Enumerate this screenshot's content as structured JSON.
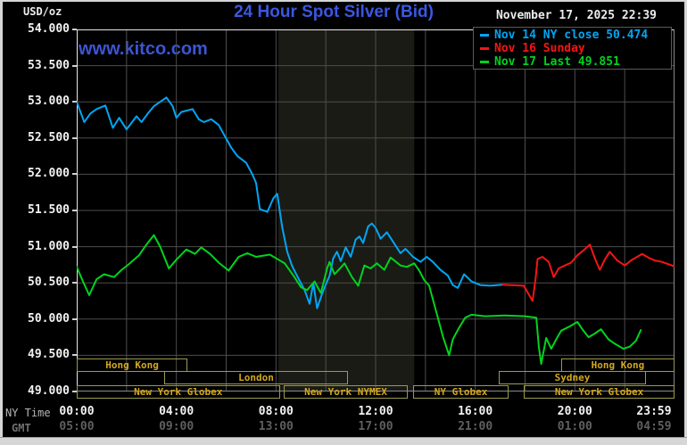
{
  "header": {
    "usd_oz": "USD/oz",
    "title": "24 Hour Spot Silver (Bid)",
    "datetime": "November 17, 2025 22:39",
    "watermark": "www.kitco.com"
  },
  "axis_labels": {
    "ny_time": "NY Time",
    "gmt": "GMT"
  },
  "legend": [
    {
      "label": "Nov 14 NY close 50.474",
      "color": "#00a6f4"
    },
    {
      "label": "Nov 16 Sunday",
      "color": "#f51515"
    },
    {
      "label": "Nov 17 Last 49.851",
      "color": "#00d41e"
    }
  ],
  "colors": {
    "background": "#000000",
    "grid": "#4d4d4d",
    "nymex_band": "#1b1b15",
    "axis_text": "#f2f2f2",
    "gmt_text": "#5f5f5f",
    "session_border": "#9a9a4e",
    "session_text": "#d2a81e",
    "title_blue": "#3b57e0",
    "watermark_blue": "#3c55d4",
    "plot_border_light": "#e8e8e8",
    "plot_border_dark": "#8a8a8a"
  },
  "chart_data": {
    "type": "line",
    "title": "24 Hour Spot Silver (Bid)",
    "ylabel": "USD/oz",
    "ylim": [
      49.0,
      54.0
    ],
    "xlim_hours": [
      0,
      24
    ],
    "grid": {
      "x_step_hours": 2,
      "y_step": 0.5,
      "on": true
    },
    "legend_position": "top-right",
    "nymex_band_hours": [
      8.1,
      13.55
    ],
    "y_ticks": [
      {
        "label": "54.000",
        "value": 54.0
      },
      {
        "label": "53.500",
        "value": 53.5
      },
      {
        "label": "53.000",
        "value": 53.0
      },
      {
        "label": "52.500",
        "value": 52.5
      },
      {
        "label": "52.000",
        "value": 52.0
      },
      {
        "label": "51.500",
        "value": 51.5
      },
      {
        "label": "51.000",
        "value": 51.0
      },
      {
        "label": "50.500",
        "value": 50.5
      },
      {
        "label": "50.000",
        "value": 50.0
      },
      {
        "label": "49.500",
        "value": 49.5
      },
      {
        "label": "49.000",
        "value": 49.0
      }
    ],
    "x_ticks": [
      {
        "ny": "00:00",
        "gmt": "05:00",
        "hour": 0
      },
      {
        "ny": "04:00",
        "gmt": "09:00",
        "hour": 4
      },
      {
        "ny": "08:00",
        "gmt": "13:00",
        "hour": 8
      },
      {
        "ny": "12:00",
        "gmt": "17:00",
        "hour": 12
      },
      {
        "ny": "16:00",
        "gmt": "21:00",
        "hour": 16
      },
      {
        "ny": "20:00",
        "gmt": "01:00",
        "hour": 20
      },
      {
        "ny": "23:59",
        "gmt": "04:59",
        "hour": 23.983
      }
    ],
    "series": [
      {
        "name": "Nov 14 NY close",
        "color": "#00a6f4",
        "close": 50.474,
        "points": [
          [
            0,
            53.0
          ],
          [
            0.3,
            52.72
          ],
          [
            0.55,
            52.84
          ],
          [
            0.8,
            52.9
          ],
          [
            1.15,
            52.95
          ],
          [
            1.45,
            52.64
          ],
          [
            1.7,
            52.78
          ],
          [
            2.0,
            52.62
          ],
          [
            2.4,
            52.8
          ],
          [
            2.6,
            52.72
          ],
          [
            2.9,
            52.86
          ],
          [
            3.1,
            52.94
          ],
          [
            3.35,
            53.0
          ],
          [
            3.6,
            53.06
          ],
          [
            3.85,
            52.94
          ],
          [
            4.0,
            52.78
          ],
          [
            4.2,
            52.86
          ],
          [
            4.65,
            52.9
          ],
          [
            4.9,
            52.76
          ],
          [
            5.1,
            52.72
          ],
          [
            5.4,
            52.76
          ],
          [
            5.7,
            52.68
          ],
          [
            6.2,
            52.37
          ],
          [
            6.45,
            52.25
          ],
          [
            6.8,
            52.16
          ],
          [
            7.05,
            52.0
          ],
          [
            7.2,
            51.88
          ],
          [
            7.35,
            51.52
          ],
          [
            7.65,
            51.48
          ],
          [
            7.9,
            51.67
          ],
          [
            8.05,
            51.73
          ],
          [
            8.25,
            51.27
          ],
          [
            8.45,
            50.93
          ],
          [
            8.65,
            50.73
          ],
          [
            8.9,
            50.56
          ],
          [
            9.15,
            50.4
          ],
          [
            9.35,
            50.21
          ],
          [
            9.5,
            50.5
          ],
          [
            9.65,
            50.15
          ],
          [
            9.8,
            50.3
          ],
          [
            9.95,
            50.44
          ],
          [
            10.15,
            50.6
          ],
          [
            10.3,
            50.84
          ],
          [
            10.45,
            50.93
          ],
          [
            10.6,
            50.8
          ],
          [
            10.8,
            50.99
          ],
          [
            11.0,
            50.86
          ],
          [
            11.2,
            51.1
          ],
          [
            11.35,
            51.14
          ],
          [
            11.5,
            51.05
          ],
          [
            11.7,
            51.28
          ],
          [
            11.85,
            51.32
          ],
          [
            12.0,
            51.26
          ],
          [
            12.2,
            51.11
          ],
          [
            12.45,
            51.2
          ],
          [
            12.7,
            51.07
          ],
          [
            13.0,
            50.91
          ],
          [
            13.2,
            50.97
          ],
          [
            13.5,
            50.86
          ],
          [
            13.8,
            50.79
          ],
          [
            14.05,
            50.86
          ],
          [
            14.3,
            50.79
          ],
          [
            14.6,
            50.68
          ],
          [
            14.9,
            50.6
          ],
          [
            15.1,
            50.47
          ],
          [
            15.3,
            50.43
          ],
          [
            15.55,
            50.62
          ],
          [
            15.85,
            50.52
          ],
          [
            16.2,
            50.47
          ],
          [
            16.6,
            50.46
          ],
          [
            17.1,
            50.474
          ]
        ]
      },
      {
        "name": "Nov 16 Sunday",
        "color": "#f51515",
        "points": [
          [
            17.1,
            50.474
          ],
          [
            17.95,
            50.46
          ],
          [
            18.3,
            50.25
          ],
          [
            18.42,
            50.55
          ],
          [
            18.5,
            50.83
          ],
          [
            18.7,
            50.86
          ],
          [
            18.95,
            50.79
          ],
          [
            19.15,
            50.58
          ],
          [
            19.35,
            50.7
          ],
          [
            19.6,
            50.74
          ],
          [
            19.85,
            50.78
          ],
          [
            20.1,
            50.88
          ],
          [
            20.35,
            50.95
          ],
          [
            20.6,
            51.03
          ],
          [
            20.8,
            50.84
          ],
          [
            21.0,
            50.68
          ],
          [
            21.2,
            50.82
          ],
          [
            21.4,
            50.93
          ],
          [
            21.7,
            50.81
          ],
          [
            22.0,
            50.74
          ],
          [
            22.3,
            50.82
          ],
          [
            22.7,
            50.9
          ],
          [
            23.0,
            50.84
          ],
          [
            23.2,
            50.81
          ],
          [
            23.5,
            50.79
          ],
          [
            23.98,
            50.73
          ]
        ]
      },
      {
        "name": "Nov 17 Last",
        "color": "#00d41e",
        "last": 49.851,
        "points": [
          [
            0,
            50.72
          ],
          [
            0.25,
            50.52
          ],
          [
            0.5,
            50.33
          ],
          [
            0.8,
            50.55
          ],
          [
            1.1,
            50.62
          ],
          [
            1.5,
            50.58
          ],
          [
            1.8,
            50.68
          ],
          [
            2.1,
            50.76
          ],
          [
            2.5,
            50.88
          ],
          [
            2.8,
            51.03
          ],
          [
            3.1,
            51.16
          ],
          [
            3.35,
            51.0
          ],
          [
            3.7,
            50.7
          ],
          [
            4.0,
            50.82
          ],
          [
            4.4,
            50.96
          ],
          [
            4.75,
            50.9
          ],
          [
            5.0,
            50.99
          ],
          [
            5.35,
            50.9
          ],
          [
            5.7,
            50.78
          ],
          [
            6.1,
            50.67
          ],
          [
            6.5,
            50.86
          ],
          [
            6.85,
            50.91
          ],
          [
            7.2,
            50.86
          ],
          [
            7.75,
            50.89
          ],
          [
            8.1,
            50.82
          ],
          [
            8.35,
            50.77
          ],
          [
            8.7,
            50.6
          ],
          [
            9.0,
            50.44
          ],
          [
            9.25,
            50.4
          ],
          [
            9.55,
            50.52
          ],
          [
            9.8,
            50.36
          ],
          [
            10.05,
            50.7
          ],
          [
            10.15,
            50.79
          ],
          [
            10.35,
            50.62
          ],
          [
            10.6,
            50.71
          ],
          [
            10.75,
            50.77
          ],
          [
            11.05,
            50.58
          ],
          [
            11.3,
            50.46
          ],
          [
            11.55,
            50.74
          ],
          [
            11.8,
            50.7
          ],
          [
            12.05,
            50.77
          ],
          [
            12.35,
            50.68
          ],
          [
            12.6,
            50.85
          ],
          [
            13.0,
            50.74
          ],
          [
            13.25,
            50.72
          ],
          [
            13.55,
            50.77
          ],
          [
            13.75,
            50.67
          ],
          [
            13.95,
            50.54
          ],
          [
            14.15,
            50.46
          ],
          [
            14.45,
            50.08
          ],
          [
            14.7,
            49.76
          ],
          [
            14.95,
            49.5
          ],
          [
            15.1,
            49.72
          ],
          [
            15.35,
            49.88
          ],
          [
            15.6,
            50.02
          ],
          [
            15.85,
            50.06
          ],
          [
            16.4,
            50.04
          ],
          [
            17.2,
            50.05
          ],
          [
            18.0,
            50.04
          ],
          [
            18.45,
            50.02
          ],
          [
            18.55,
            49.62
          ],
          [
            18.65,
            49.38
          ],
          [
            18.85,
            49.74
          ],
          [
            19.05,
            49.59
          ],
          [
            19.25,
            49.72
          ],
          [
            19.45,
            49.84
          ],
          [
            19.8,
            49.9
          ],
          [
            20.1,
            49.96
          ],
          [
            20.3,
            49.86
          ],
          [
            20.55,
            49.75
          ],
          [
            20.8,
            49.8
          ],
          [
            21.05,
            49.86
          ],
          [
            21.35,
            49.72
          ],
          [
            21.6,
            49.66
          ],
          [
            21.95,
            49.59
          ],
          [
            22.2,
            49.62
          ],
          [
            22.45,
            49.7
          ],
          [
            22.65,
            49.85
          ]
        ]
      }
    ],
    "sessions": [
      {
        "label": "Hong Kong",
        "row": 0,
        "t0": 0.0,
        "t1": 4.45
      },
      {
        "label": "Hong Kong",
        "row": 0,
        "t0": 19.45,
        "t1": 24.0
      },
      {
        "label": "London",
        "row": 1,
        "t0": 3.5,
        "t1": 10.9
      },
      {
        "label": "Sydney",
        "row": 1,
        "t0": 16.95,
        "t1": 22.85
      },
      {
        "label": "New York Globex",
        "row": 2,
        "t0": 0.0,
        "t1": 8.15
      },
      {
        "label": "New York NYMEX",
        "row": 2,
        "t0": 8.3,
        "t1": 13.3
      },
      {
        "label": "NY Globex",
        "row": 2,
        "t0": 13.5,
        "t1": 17.35
      },
      {
        "label": "New York Globex",
        "row": 2,
        "t0": 17.95,
        "t1": 24.0
      }
    ]
  }
}
